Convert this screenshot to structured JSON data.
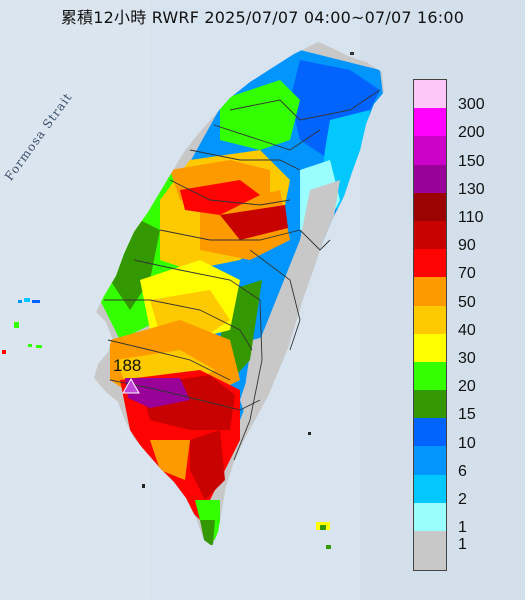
{
  "title": "累積12小時 RWRF 2025/07/07 04:00~07/07 16:00",
  "strait_label": "Formosa Strait",
  "peak": {
    "value": "188",
    "marker": "triangle-marker",
    "color": "#c04ad8"
  },
  "legend": {
    "entries": [
      {
        "label": "300",
        "color": "#fdc8f8"
      },
      {
        "label": "200",
        "color": "#fd03fd"
      },
      {
        "label": "150",
        "color": "#cc02c8"
      },
      {
        "label": "130",
        "color": "#990199"
      },
      {
        "label": "110",
        "color": "#9b0201"
      },
      {
        "label": "90",
        "color": "#c80201"
      },
      {
        "label": "70",
        "color": "#fd0302"
      },
      {
        "label": "50",
        "color": "#fd9a00"
      },
      {
        "label": "40",
        "color": "#fdc900"
      },
      {
        "label": "30",
        "color": "#fefe00"
      },
      {
        "label": "20",
        "color": "#33ff02"
      },
      {
        "label": "15",
        "color": "#339802"
      },
      {
        "label": "10",
        "color": "#0264fd"
      },
      {
        "label": "6",
        "color": "#0296fd"
      },
      {
        "label": "2",
        "color": "#02c8fd"
      },
      {
        "label": "1",
        "color": "#9bfefe"
      },
      {
        "label": "",
        "color": "#c8c8c8"
      }
    ],
    "bottom_label": "1"
  },
  "colors": {
    "sea": "#d7e3ee",
    "no_rain": "#c8c8c8",
    "border": "#333333"
  }
}
